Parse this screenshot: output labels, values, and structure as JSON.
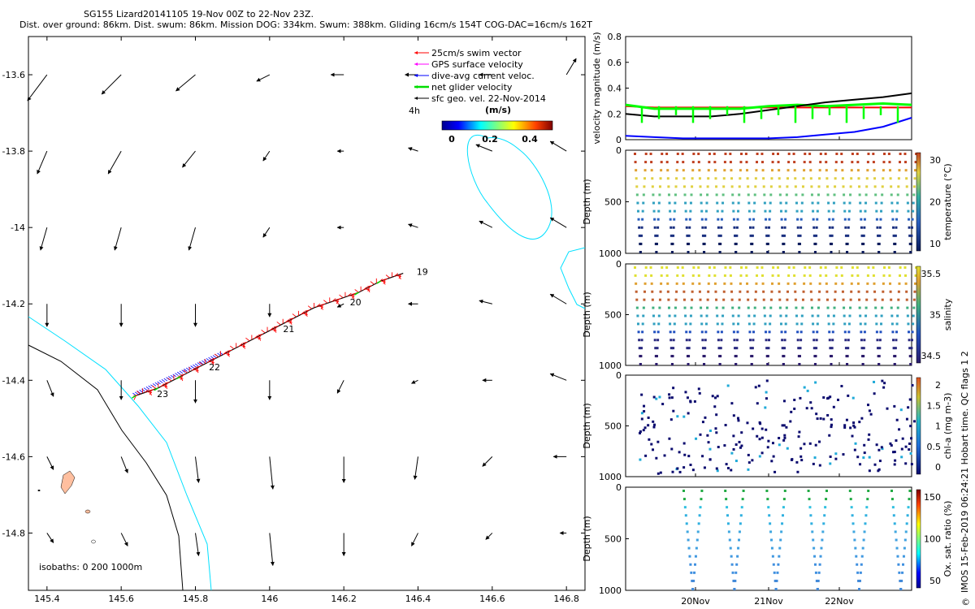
{
  "header": {
    "line1": "SG155 Lizard20141105 19-Nov 00Z to 22-Nov 23Z.",
    "line2": "Dist. over ground: 86km. Dist. swum: 86km. Mission DOG: 334km. Swum: 388km. Gliding 16cm/s 154T COG-DAC=16cm/s 162T"
  },
  "map": {
    "xlim": [
      145.35,
      146.85
    ],
    "ylim": [
      -14.95,
      -13.5
    ],
    "xticks": [
      "145.4",
      "145.6",
      "145.8",
      "146",
      "146.2",
      "146.4",
      "146.6",
      "146.8"
    ],
    "yticks": [
      "-13.6",
      "-13.8",
      "-14",
      "-14.2",
      "-14.4",
      "-14.6",
      "-14.8"
    ],
    "legend": {
      "items": [
        {
          "label": "25cm/s swim vector",
          "color": "#ff0000"
        },
        {
          "label": "GPS surface velocity",
          "color": "#ff00ff"
        },
        {
          "label": "dive-avg current veloc.",
          "color": "#0000ff"
        },
        {
          "label": "net glider velocity",
          "color": "#00dd00"
        },
        {
          "label": "sfc geo. vel. 22-Nov-2014",
          "color": "#000000"
        }
      ],
      "time_label": "4h",
      "colorbar_title": "(m/s)",
      "colorbar_ticks": [
        "0",
        "0.2",
        "0.4"
      ]
    },
    "isobaths_label": "isobaths: 0   200  1000m",
    "day_labels": [
      "19",
      "20",
      "21",
      "22",
      "23"
    ]
  },
  "panels": [
    {
      "ylabel": "velocity magnitude (m/s)",
      "yticks": [
        "0",
        "0.2",
        "0.4",
        "0.6",
        "0.8"
      ],
      "clabel": "",
      "cticks": []
    },
    {
      "ylabel": "Depth (m)",
      "yticks": [
        "0",
        "500",
        "1000"
      ],
      "clabel": "temperature (°C)",
      "cticks": [
        "10",
        "20",
        "30"
      ]
    },
    {
      "ylabel": "Depth (m)",
      "yticks": [
        "0",
        "500",
        "1000"
      ],
      "clabel": "salinity",
      "cticks": [
        "34.5",
        "35",
        "35.5"
      ]
    },
    {
      "ylabel": "Depth (m)",
      "yticks": [
        "0",
        "500",
        "1000"
      ],
      "clabel": "chl-a (mg m-3)",
      "cticks": [
        "0",
        "0.5",
        "1",
        "1.5",
        "2"
      ]
    },
    {
      "ylabel": "Depth (m)",
      "yticks": [
        "0",
        "500",
        "1000"
      ],
      "clabel": "Ox. sat. ratio (%)",
      "cticks": [
        "50",
        "100",
        "150"
      ]
    }
  ],
  "time_axis": {
    "labels": [
      "20Nov",
      "21Nov",
      "22Nov"
    ]
  },
  "side_note": "IMOS 15-Feb-2019 06:24:21 Hobart time. QC flags 1  2",
  "copyright_symbol": "©",
  "chart_data": [
    {
      "type": "scatter",
      "xlabel": "",
      "ylabel": "",
      "xlim": [
        145.35,
        146.85
      ],
      "ylim": [
        -14.95,
        -13.5
      ],
      "track": {
        "lon": [
          145.64,
          145.7,
          145.76,
          145.82,
          145.88,
          145.94,
          146.0,
          146.06,
          146.12,
          146.18,
          146.24,
          146.3,
          146.36
        ],
        "lat": [
          -14.44,
          -14.42,
          -14.39,
          -14.36,
          -14.33,
          -14.3,
          -14.27,
          -14.24,
          -14.21,
          -14.19,
          -14.17,
          -14.14,
          -14.12
        ]
      },
      "day_marks": [
        {
          "label": "19",
          "lon": 146.37,
          "lat": -14.12
        },
        {
          "label": "20",
          "lon": 146.19,
          "lat": -14.2
        },
        {
          "label": "21",
          "lon": 146.01,
          "lat": -14.27
        },
        {
          "label": "22",
          "lon": 145.81,
          "lat": -14.37
        },
        {
          "label": "23",
          "lon": 145.67,
          "lat": -14.44
        }
      ],
      "current_grid": {
        "lons": [
          145.4,
          145.6,
          145.8,
          146.0,
          146.2,
          146.4,
          146.6,
          146.8
        ],
        "lats": [
          -13.6,
          -13.8,
          -14.0,
          -14.2,
          -14.4,
          -14.6,
          -14.8
        ],
        "u": [
          [
            -0.12,
            -0.12,
            -0.12,
            -0.08,
            -0.08,
            -0.08,
            -0.08,
            0.06
          ],
          [
            -0.06,
            -0.08,
            -0.08,
            -0.04,
            -0.04,
            -0.06,
            -0.1,
            -0.1
          ],
          [
            -0.04,
            -0.04,
            -0.04,
            -0.04,
            -0.04,
            -0.06,
            -0.08,
            -0.1
          ],
          [
            0.0,
            0.0,
            0.0,
            0.0,
            -0.04,
            -0.06,
            -0.08,
            -0.1
          ],
          [
            0.04,
            0.0,
            0.0,
            0.0,
            -0.04,
            -0.04,
            -0.06,
            -0.1
          ],
          [
            0.04,
            0.04,
            0.02,
            0.02,
            0.0,
            -0.02,
            -0.06,
            -0.08
          ],
          [
            0.04,
            0.04,
            0.02,
            0.02,
            0.0,
            -0.04,
            -0.04,
            -0.04
          ]
        ],
        "v": [
          [
            -0.16,
            -0.12,
            -0.1,
            -0.04,
            0.0,
            0.0,
            0.0,
            0.1
          ],
          [
            -0.14,
            -0.14,
            -0.1,
            -0.06,
            0.0,
            0.02,
            0.04,
            0.06
          ],
          [
            -0.14,
            -0.14,
            -0.14,
            -0.06,
            0.0,
            0.02,
            0.04,
            0.06
          ],
          [
            -0.14,
            -0.14,
            -0.14,
            -0.08,
            -0.02,
            0.0,
            0.02,
            0.06
          ],
          [
            -0.1,
            -0.12,
            -0.14,
            -0.12,
            -0.08,
            -0.02,
            0.0,
            0.04
          ],
          [
            -0.08,
            -0.1,
            -0.16,
            -0.2,
            -0.16,
            -0.14,
            -0.06,
            0.0
          ],
          [
            -0.06,
            -0.08,
            -0.14,
            -0.2,
            -0.14,
            -0.08,
            -0.04,
            0.0
          ]
        ]
      }
    },
    {
      "type": "line",
      "ylim": [
        0,
        0.8
      ],
      "x": [
        0,
        0.1,
        0.2,
        0.3,
        0.4,
        0.5,
        0.6,
        0.7,
        0.8,
        0.9,
        1.0
      ],
      "series": [
        {
          "color": "#ff0000",
          "values": [
            0.26,
            0.25,
            0.25,
            0.25,
            0.25,
            0.25,
            0.25,
            0.25,
            0.25,
            0.25,
            0.25
          ]
        },
        {
          "color": "#00ff00",
          "values": [
            0.27,
            0.24,
            0.24,
            0.24,
            0.24,
            0.26,
            0.27,
            0.26,
            0.27,
            0.28,
            0.27
          ]
        },
        {
          "color": "#000000",
          "values": [
            0.2,
            0.18,
            0.18,
            0.18,
            0.2,
            0.23,
            0.26,
            0.29,
            0.31,
            0.33,
            0.36
          ]
        },
        {
          "color": "#0000ff",
          "values": [
            0.03,
            0.02,
            0.01,
            0.01,
            0.01,
            0.01,
            0.02,
            0.04,
            0.06,
            0.1,
            0.17
          ]
        }
      ]
    },
    {
      "type": "scatter",
      "profile": "temperature",
      "depth_lim": [
        0,
        1000
      ],
      "color_range": [
        4,
        30
      ],
      "max_depth": 1000,
      "n_dives": 18
    },
    {
      "type": "scatter",
      "profile": "salinity",
      "depth_lim": [
        0,
        1000
      ],
      "color_range": [
        34.3,
        35.9
      ],
      "max_depth": 1000,
      "n_dives": 18
    },
    {
      "type": "scatter",
      "profile": "chl-a",
      "depth_lim": [
        0,
        1000
      ],
      "color_range": [
        0,
        2
      ],
      "max_depth": 1000,
      "n_dives": 18
    },
    {
      "type": "scatter",
      "profile": "oxygen saturation",
      "depth_lim": [
        0,
        1000
      ],
      "color_range": [
        25,
        175
      ],
      "max_depth": 1000,
      "n_dives": 11
    }
  ]
}
